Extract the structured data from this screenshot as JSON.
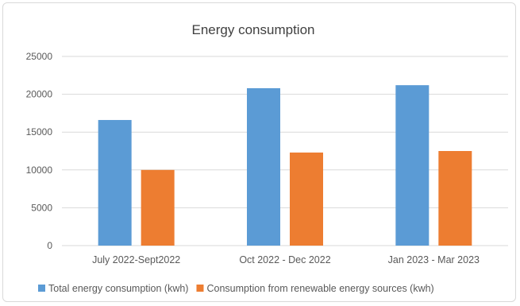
{
  "chart_data": {
    "type": "bar",
    "title": "Energy consumption",
    "xlabel": "",
    "ylabel": "",
    "categories": [
      "July 2022-Sept2022",
      "Oct 2022 - Dec 2022",
      "Jan 2023 - Mar 2023"
    ],
    "series": [
      {
        "name": "Total energy consumption (kwh)",
        "values": [
          16600,
          20800,
          21200
        ],
        "color": "#5b9bd5"
      },
      {
        "name": "Consumption from renewable energy sources (kwh)",
        "values": [
          10000,
          12300,
          12500
        ],
        "color": "#ed7d31"
      }
    ],
    "ylim": [
      0,
      25000
    ],
    "yticks": [
      "0",
      "5000",
      "10000",
      "15000",
      "20000",
      "25000"
    ],
    "grid": true,
    "legend_position": "bottom"
  }
}
